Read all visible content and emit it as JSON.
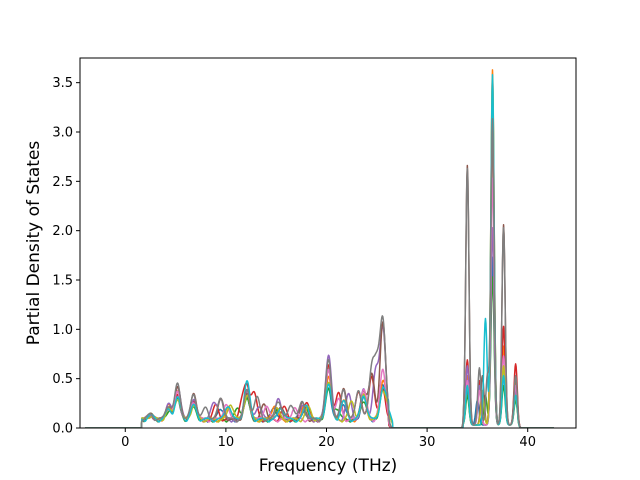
{
  "chart_data": {
    "type": "line",
    "xlabel": "Frequency (THz)",
    "ylabel": "Partial Density of States",
    "xlim": [
      -4.5,
      44.8
    ],
    "ylim": [
      0.0,
      3.75
    ],
    "xticks": [
      0,
      10,
      20,
      30,
      40
    ],
    "yticks": [
      0.0,
      0.5,
      1.0,
      1.5,
      2.0,
      2.5,
      3.0,
      3.5
    ],
    "xtick_labels": [
      "0",
      "10",
      "20",
      "30",
      "40"
    ],
    "ytick_labels": [
      "0.0",
      "0.5",
      "1.0",
      "1.5",
      "2.0",
      "2.5",
      "3.0",
      "3.5"
    ],
    "grid": false,
    "legend": "none",
    "series": [
      {
        "color": "#1f77b4",
        "peaks": [
          [
            2.5,
            0.05
          ],
          [
            4.3,
            0.12
          ],
          [
            5.2,
            0.22
          ],
          [
            6.8,
            0.15
          ],
          [
            9.5,
            0.12
          ],
          [
            12.1,
            0.24
          ],
          [
            14.8,
            0.12
          ],
          [
            17.6,
            0.12
          ],
          [
            20.2,
            0.32
          ],
          [
            21.7,
            0.16
          ],
          [
            23.7,
            0.22
          ],
          [
            25.6,
            0.35
          ],
          [
            34.0,
            0.35
          ],
          [
            35.0,
            0.25
          ],
          [
            36.5,
            1.7
          ],
          [
            37.6,
            0.5
          ],
          [
            38.8,
            0.3
          ]
        ]
      },
      {
        "color": "#ff7f0e",
        "peaks": [
          [
            2.5,
            0.05
          ],
          [
            4.3,
            0.14
          ],
          [
            5.2,
            0.3
          ],
          [
            6.8,
            0.18
          ],
          [
            10.3,
            0.14
          ],
          [
            12.1,
            0.3
          ],
          [
            14.8,
            0.14
          ],
          [
            17.8,
            0.14
          ],
          [
            20.2,
            0.45
          ],
          [
            21.7,
            0.2
          ],
          [
            23.7,
            0.25
          ],
          [
            25.6,
            0.4
          ],
          [
            26.2,
            0.12
          ],
          [
            34.0,
            0.5
          ],
          [
            35.5,
            0.35
          ],
          [
            36.5,
            3.6
          ],
          [
            37.6,
            0.8
          ],
          [
            38.8,
            0.45
          ]
        ]
      },
      {
        "color": "#2ca02c",
        "peaks": [
          [
            2.5,
            0.05
          ],
          [
            4.5,
            0.1
          ],
          [
            5.2,
            0.2
          ],
          [
            6.8,
            0.12
          ],
          [
            11.2,
            0.12
          ],
          [
            12.1,
            0.2
          ],
          [
            15.2,
            0.1
          ],
          [
            18.0,
            0.12
          ],
          [
            20.2,
            0.3
          ],
          [
            21.0,
            0.12
          ],
          [
            23.7,
            0.2
          ],
          [
            25.6,
            0.3
          ],
          [
            34.0,
            0.3
          ],
          [
            35.8,
            0.3
          ],
          [
            36.5,
            1.5
          ],
          [
            37.6,
            0.4
          ],
          [
            38.8,
            0.25
          ]
        ]
      },
      {
        "color": "#d62728",
        "peaks": [
          [
            2.5,
            0.05
          ],
          [
            4.3,
            0.13
          ],
          [
            5.2,
            0.25
          ],
          [
            6.8,
            0.2
          ],
          [
            9.0,
            0.14
          ],
          [
            11.6,
            0.16
          ],
          [
            12.1,
            0.32
          ],
          [
            12.8,
            0.26
          ],
          [
            15.8,
            0.12
          ],
          [
            18.0,
            0.18
          ],
          [
            20.2,
            0.55
          ],
          [
            21.2,
            0.26
          ],
          [
            23.2,
            0.3
          ],
          [
            24.5,
            0.45
          ],
          [
            25.6,
            0.3
          ],
          [
            34.0,
            0.66
          ],
          [
            35.2,
            0.45
          ],
          [
            36.5,
            3.1
          ],
          [
            37.6,
            1.0
          ],
          [
            38.8,
            0.62
          ]
        ]
      },
      {
        "color": "#9467bd",
        "peaks": [
          [
            2.5,
            0.05
          ],
          [
            4.3,
            0.15
          ],
          [
            5.2,
            0.35
          ],
          [
            6.8,
            0.2
          ],
          [
            8.8,
            0.16
          ],
          [
            9.5,
            0.2
          ],
          [
            12.1,
            0.3
          ],
          [
            13.3,
            0.15
          ],
          [
            15.2,
            0.2
          ],
          [
            17.6,
            0.15
          ],
          [
            20.2,
            0.67
          ],
          [
            22.2,
            0.25
          ],
          [
            23.7,
            0.3
          ],
          [
            24.9,
            0.48
          ],
          [
            25.6,
            0.95
          ],
          [
            34.0,
            0.6
          ],
          [
            35.2,
            0.4
          ],
          [
            36.5,
            2.0
          ],
          [
            37.6,
            0.6
          ],
          [
            38.8,
            0.35
          ]
        ]
      },
      {
        "color": "#8c564b",
        "peaks": [
          [
            2.5,
            0.05
          ],
          [
            4.3,
            0.12
          ],
          [
            5.2,
            0.32
          ],
          [
            6.8,
            0.25
          ],
          [
            9.5,
            0.2
          ],
          [
            12.1,
            0.25
          ],
          [
            13.8,
            0.15
          ],
          [
            15.5,
            0.14
          ],
          [
            17.6,
            0.16
          ],
          [
            20.2,
            0.5
          ],
          [
            21.7,
            0.3
          ],
          [
            23.7,
            0.3
          ],
          [
            24.5,
            0.45
          ],
          [
            25.6,
            0.98
          ],
          [
            34.0,
            2.63
          ],
          [
            35.5,
            0.5
          ],
          [
            36.5,
            3.15
          ],
          [
            37.6,
            2.03
          ],
          [
            38.8,
            0.5
          ]
        ]
      },
      {
        "color": "#e377c2",
        "peaks": [
          [
            2.5,
            0.05
          ],
          [
            4.3,
            0.12
          ],
          [
            5.2,
            0.28
          ],
          [
            6.8,
            0.18
          ],
          [
            10.0,
            0.15
          ],
          [
            12.1,
            0.3
          ],
          [
            14.0,
            0.14
          ],
          [
            16.8,
            0.12
          ],
          [
            20.2,
            0.5
          ],
          [
            21.2,
            0.2
          ],
          [
            23.7,
            0.3
          ],
          [
            25.6,
            0.5
          ],
          [
            34.0,
            0.45
          ],
          [
            35.2,
            0.35
          ],
          [
            36.5,
            2.5
          ],
          [
            37.6,
            0.7
          ],
          [
            38.8,
            0.4
          ]
        ]
      },
      {
        "color": "#bcbd22",
        "peaks": [
          [
            2.5,
            0.04
          ],
          [
            4.3,
            0.1
          ],
          [
            5.2,
            0.22
          ],
          [
            6.8,
            0.14
          ],
          [
            10.5,
            0.16
          ],
          [
            12.1,
            0.26
          ],
          [
            15.0,
            0.12
          ],
          [
            18.2,
            0.12
          ],
          [
            20.2,
            0.4
          ],
          [
            22.5,
            0.18
          ],
          [
            23.7,
            0.24
          ],
          [
            25.6,
            0.3
          ],
          [
            26.2,
            0.1
          ],
          [
            34.0,
            0.4
          ],
          [
            35.5,
            0.3
          ],
          [
            36.5,
            3.5
          ],
          [
            37.6,
            0.6
          ],
          [
            38.8,
            0.3
          ]
        ]
      },
      {
        "color": "#17becf",
        "peaks": [
          [
            2.5,
            0.04
          ],
          [
            4.3,
            0.1
          ],
          [
            5.2,
            0.22
          ],
          [
            6.8,
            0.14
          ],
          [
            10.2,
            0.15
          ],
          [
            12.1,
            0.38
          ],
          [
            15.5,
            0.12
          ],
          [
            18.0,
            0.14
          ],
          [
            20.2,
            0.35
          ],
          [
            21.7,
            0.18
          ],
          [
            23.7,
            0.25
          ],
          [
            25.6,
            0.3
          ],
          [
            26.2,
            0.15
          ],
          [
            34.0,
            0.4
          ],
          [
            35.8,
            1.08
          ],
          [
            36.5,
            3.55
          ],
          [
            37.6,
            0.5
          ],
          [
            38.8,
            0.3
          ]
        ]
      },
      {
        "color": "#7f7f7f",
        "peaks": [
          [
            2.5,
            0.05
          ],
          [
            4.3,
            0.15
          ],
          [
            5.2,
            0.36
          ],
          [
            6.8,
            0.26
          ],
          [
            8.0,
            0.12
          ],
          [
            9.5,
            0.22
          ],
          [
            12.1,
            0.3
          ],
          [
            13.1,
            0.22
          ],
          [
            15.2,
            0.2
          ],
          [
            16.5,
            0.16
          ],
          [
            17.6,
            0.18
          ],
          [
            20.2,
            0.6
          ],
          [
            21.7,
            0.3
          ],
          [
            23.2,
            0.3
          ],
          [
            24.5,
            0.48
          ],
          [
            25.0,
            0.5
          ],
          [
            25.6,
            0.98
          ],
          [
            34.0,
            2.6
          ],
          [
            35.2,
            0.58
          ],
          [
            36.0,
            0.5
          ],
          [
            36.5,
            3.1
          ],
          [
            37.6,
            2.0
          ],
          [
            38.8,
            0.5
          ]
        ]
      }
    ]
  }
}
